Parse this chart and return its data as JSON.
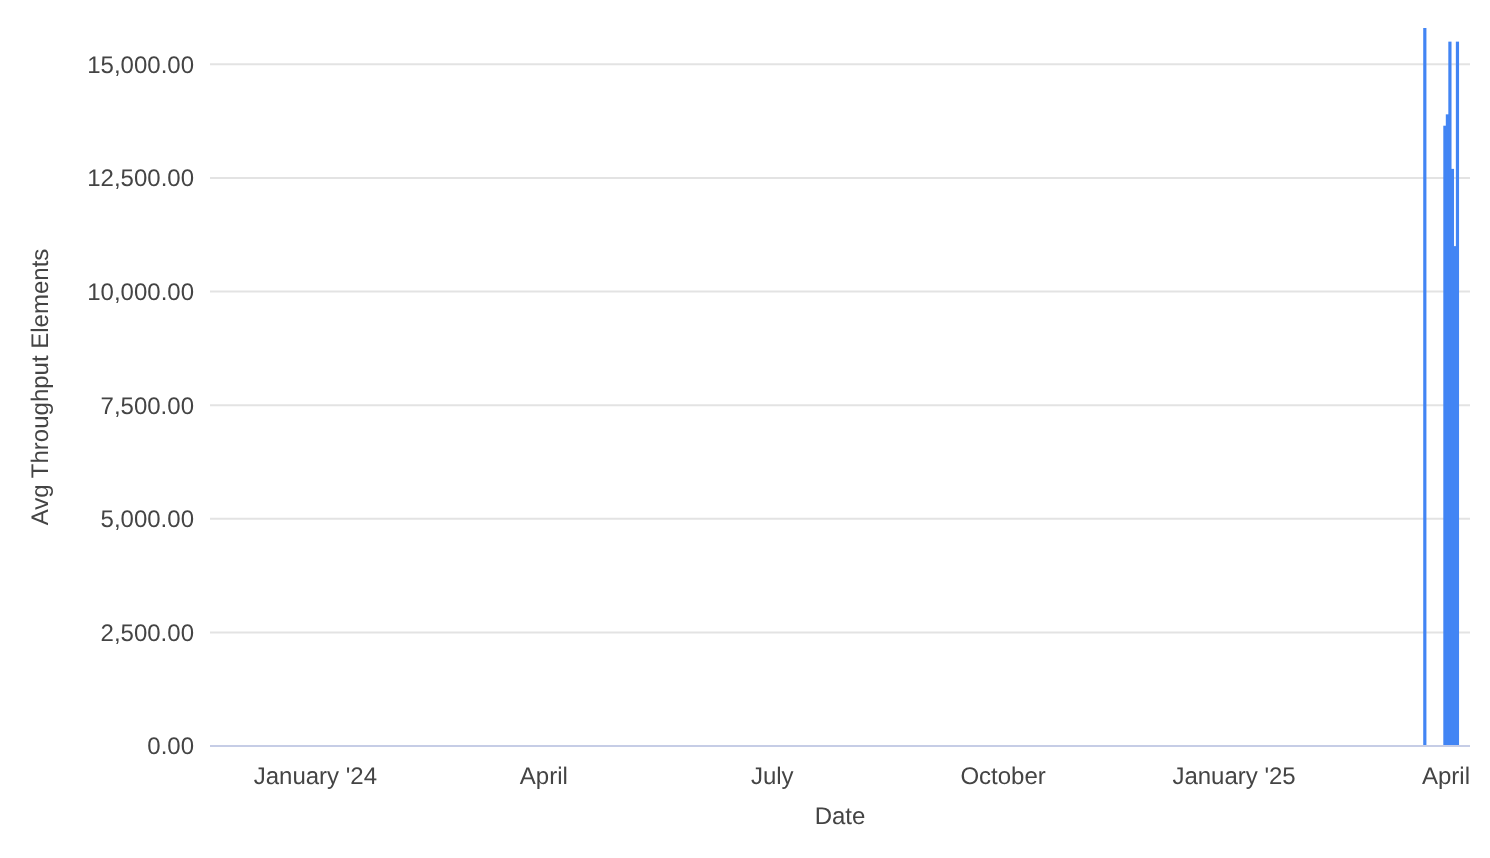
{
  "chart_data": {
    "type": "bar",
    "xlabel": "Date",
    "ylabel": "Avg Throughput Elements",
    "x": [
      "2025-03-18",
      "2025-03-26",
      "2025-03-27",
      "2025-03-28",
      "2025-03-29",
      "2025-03-30",
      "2025-03-31"
    ],
    "values": [
      15800,
      13650,
      13900,
      15500,
      12700,
      11000,
      15500
    ],
    "color": "#4285f4",
    "xlim": [
      "2023-11-20",
      "2025-04-05"
    ],
    "xticks": [
      {
        "value": "2024-01-01",
        "label": "January '24"
      },
      {
        "value": "2024-04-01",
        "label": "April"
      },
      {
        "value": "2024-07-01",
        "label": "July"
      },
      {
        "value": "2024-10-01",
        "label": "October"
      },
      {
        "value": "2025-01-01",
        "label": "January '25"
      },
      {
        "value": "2025-04-01",
        "label": "April"
      }
    ],
    "ylim": [
      0,
      15800
    ],
    "yticks": [
      {
        "value": 0,
        "label": "0.00"
      },
      {
        "value": 2500,
        "label": "2,500.00"
      },
      {
        "value": 5000,
        "label": "5,000.00"
      },
      {
        "value": 7500,
        "label": "7,500.00"
      },
      {
        "value": 10000,
        "label": "10,000.00"
      },
      {
        "value": 12500,
        "label": "12,500.00"
      },
      {
        "value": 15000,
        "label": "15,000.00"
      }
    ],
    "grid": "y"
  }
}
